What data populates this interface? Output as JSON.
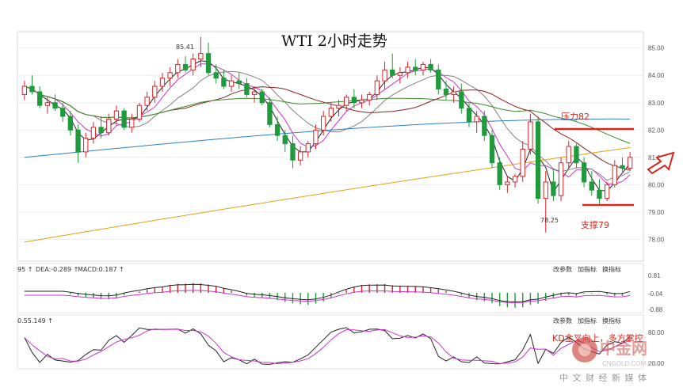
{
  "title": "WTI 2小时走势",
  "chart_data": {
    "type": "candlestick",
    "title": "WTI 2小时走势",
    "ylim": [
      77.2,
      85.6
    ],
    "yticks": [
      "85.00",
      "84.00",
      "83.00",
      "82.00",
      "81.00",
      "80.00",
      "79.00",
      "78.00"
    ],
    "candles": [
      [
        83.3,
        83.8,
        83.1,
        83.6
      ],
      [
        83.6,
        84.0,
        83.3,
        83.4
      ],
      [
        83.4,
        83.6,
        82.8,
        82.9
      ],
      [
        82.9,
        83.2,
        82.6,
        83.0
      ],
      [
        83.0,
        83.3,
        82.7,
        82.8
      ],
      [
        82.8,
        83.0,
        82.3,
        82.5
      ],
      [
        82.5,
        82.7,
        81.8,
        82.0
      ],
      [
        82.0,
        82.2,
        80.8,
        81.2
      ],
      [
        81.2,
        81.9,
        81.0,
        81.7
      ],
      [
        81.7,
        82.3,
        81.5,
        82.1
      ],
      [
        82.1,
        82.5,
        81.7,
        81.9
      ],
      [
        81.9,
        82.6,
        81.8,
        82.4
      ],
      [
        82.4,
        82.9,
        82.2,
        82.7
      ],
      [
        82.7,
        82.8,
        82.0,
        82.1
      ],
      [
        82.1,
        82.6,
        81.9,
        82.4
      ],
      [
        82.4,
        83.0,
        82.3,
        82.9
      ],
      [
        82.9,
        83.4,
        82.7,
        83.2
      ],
      [
        83.2,
        83.8,
        83.0,
        83.6
      ],
      [
        83.6,
        84.1,
        83.4,
        83.9
      ],
      [
        83.9,
        84.3,
        83.6,
        84.1
      ],
      [
        84.1,
        84.6,
        83.9,
        84.4
      ],
      [
        84.4,
        84.7,
        84.1,
        84.2
      ],
      [
        84.2,
        84.8,
        84.0,
        84.6
      ],
      [
        84.6,
        85.41,
        84.3,
        84.8
      ],
      [
        84.8,
        85.2,
        84.0,
        84.1
      ],
      [
        84.1,
        84.4,
        83.7,
        83.9
      ],
      [
        83.9,
        84.2,
        83.5,
        83.6
      ],
      [
        83.6,
        84.0,
        83.4,
        83.8
      ],
      [
        83.8,
        84.1,
        83.5,
        83.7
      ],
      [
        83.7,
        83.9,
        83.2,
        83.3
      ],
      [
        83.3,
        83.6,
        83.0,
        83.4
      ],
      [
        83.4,
        83.5,
        82.9,
        83.0
      ],
      [
        83.0,
        83.2,
        82.1,
        82.2
      ],
      [
        82.2,
        82.5,
        81.6,
        81.8
      ],
      [
        81.8,
        82.0,
        81.2,
        81.5
      ],
      [
        81.5,
        81.8,
        80.6,
        80.9
      ],
      [
        80.9,
        81.4,
        80.7,
        81.2
      ],
      [
        81.2,
        81.6,
        81.0,
        81.5
      ],
      [
        81.5,
        82.2,
        81.3,
        82.0
      ],
      [
        82.0,
        82.7,
        81.8,
        82.5
      ],
      [
        82.5,
        83.0,
        82.3,
        82.8
      ],
      [
        82.8,
        83.1,
        82.5,
        82.9
      ],
      [
        82.9,
        83.3,
        82.7,
        83.2
      ],
      [
        83.2,
        83.5,
        82.8,
        83.0
      ],
      [
        83.0,
        83.3,
        82.8,
        83.1
      ],
      [
        83.1,
        83.4,
        82.9,
        83.3
      ],
      [
        83.3,
        84.0,
        83.1,
        83.8
      ],
      [
        83.8,
        84.5,
        83.5,
        84.2
      ],
      [
        84.2,
        84.8,
        83.9,
        84.0
      ],
      [
        84.0,
        84.3,
        83.7,
        84.1
      ],
      [
        84.1,
        84.5,
        83.9,
        84.3
      ],
      [
        84.3,
        84.6,
        84.0,
        84.2
      ],
      [
        84.2,
        84.5,
        84.0,
        84.4
      ],
      [
        84.4,
        84.6,
        84.1,
        84.2
      ],
      [
        84.2,
        84.4,
        83.3,
        83.5
      ],
      [
        83.5,
        83.8,
        83.1,
        83.3
      ],
      [
        83.3,
        83.6,
        83.0,
        83.4
      ],
      [
        83.4,
        83.7,
        82.6,
        82.8
      ],
      [
        82.8,
        83.0,
        82.1,
        82.3
      ],
      [
        82.3,
        82.7,
        81.9,
        82.5
      ],
      [
        82.5,
        82.7,
        81.6,
        81.8
      ],
      [
        81.8,
        82.0,
        80.6,
        80.8
      ],
      [
        80.8,
        81.0,
        79.8,
        80.0
      ],
      [
        80.0,
        80.3,
        79.7,
        80.1
      ],
      [
        80.1,
        80.4,
        79.9,
        80.3
      ],
      [
        80.3,
        81.6,
        80.1,
        81.3
      ],
      [
        81.3,
        82.6,
        81.1,
        82.3
      ],
      [
        82.3,
        82.5,
        79.3,
        79.5
      ],
      [
        79.5,
        80.5,
        78.25,
        80.1
      ],
      [
        80.1,
        80.6,
        79.4,
        79.6
      ],
      [
        79.6,
        81.0,
        79.4,
        80.8
      ],
      [
        80.8,
        81.6,
        80.6,
        81.4
      ],
      [
        81.4,
        81.5,
        80.6,
        80.8
      ],
      [
        80.8,
        81.0,
        79.9,
        80.1
      ],
      [
        80.1,
        80.5,
        79.6,
        79.8
      ],
      [
        79.8,
        80.2,
        79.3,
        79.5
      ],
      [
        79.5,
        80.1,
        79.4,
        80.0
      ],
      [
        80.0,
        80.9,
        79.9,
        80.7
      ],
      [
        80.7,
        81.0,
        80.4,
        80.6
      ],
      [
        80.6,
        81.2,
        80.5,
        81.0
      ]
    ],
    "highs_annotated": [
      {
        "label": "85.41"
      },
      {
        "label": "78.25"
      }
    ],
    "resistance": {
      "label": "压力82",
      "value": 82.0
    },
    "support": {
      "label": "支撑79",
      "value": 79.0
    },
    "macd": {
      "header": [
        "95 ↑",
        "DEA:-0.289 ↑",
        "MACD:0.187 ↑"
      ],
      "yticks": [
        "0.81",
        "-0.04",
        "-0.88"
      ],
      "menu": [
        "改参数",
        "加指标",
        "换指标"
      ]
    },
    "kdj": {
      "header": [
        "0.55.149 ↑"
      ],
      "yticks": [
        "80.00",
        "20.00"
      ],
      "menu": [
        "改参数",
        "加指标",
        "换指标"
      ],
      "annotation": "KD金叉向上，多方掌控"
    }
  },
  "watermark": {
    "logo": "中金网",
    "url": "CNGOLD.COM.CN",
    "caption": "中 文 财 经 新 媒 体"
  },
  "colors": {
    "up": "#d6242a",
    "down": "#1f9a3c",
    "ma_yellow": "#e0a316",
    "ma_blue": "#2d7fc1",
    "ma_pink": "#cc33cc",
    "ma_black": "#222222"
  }
}
